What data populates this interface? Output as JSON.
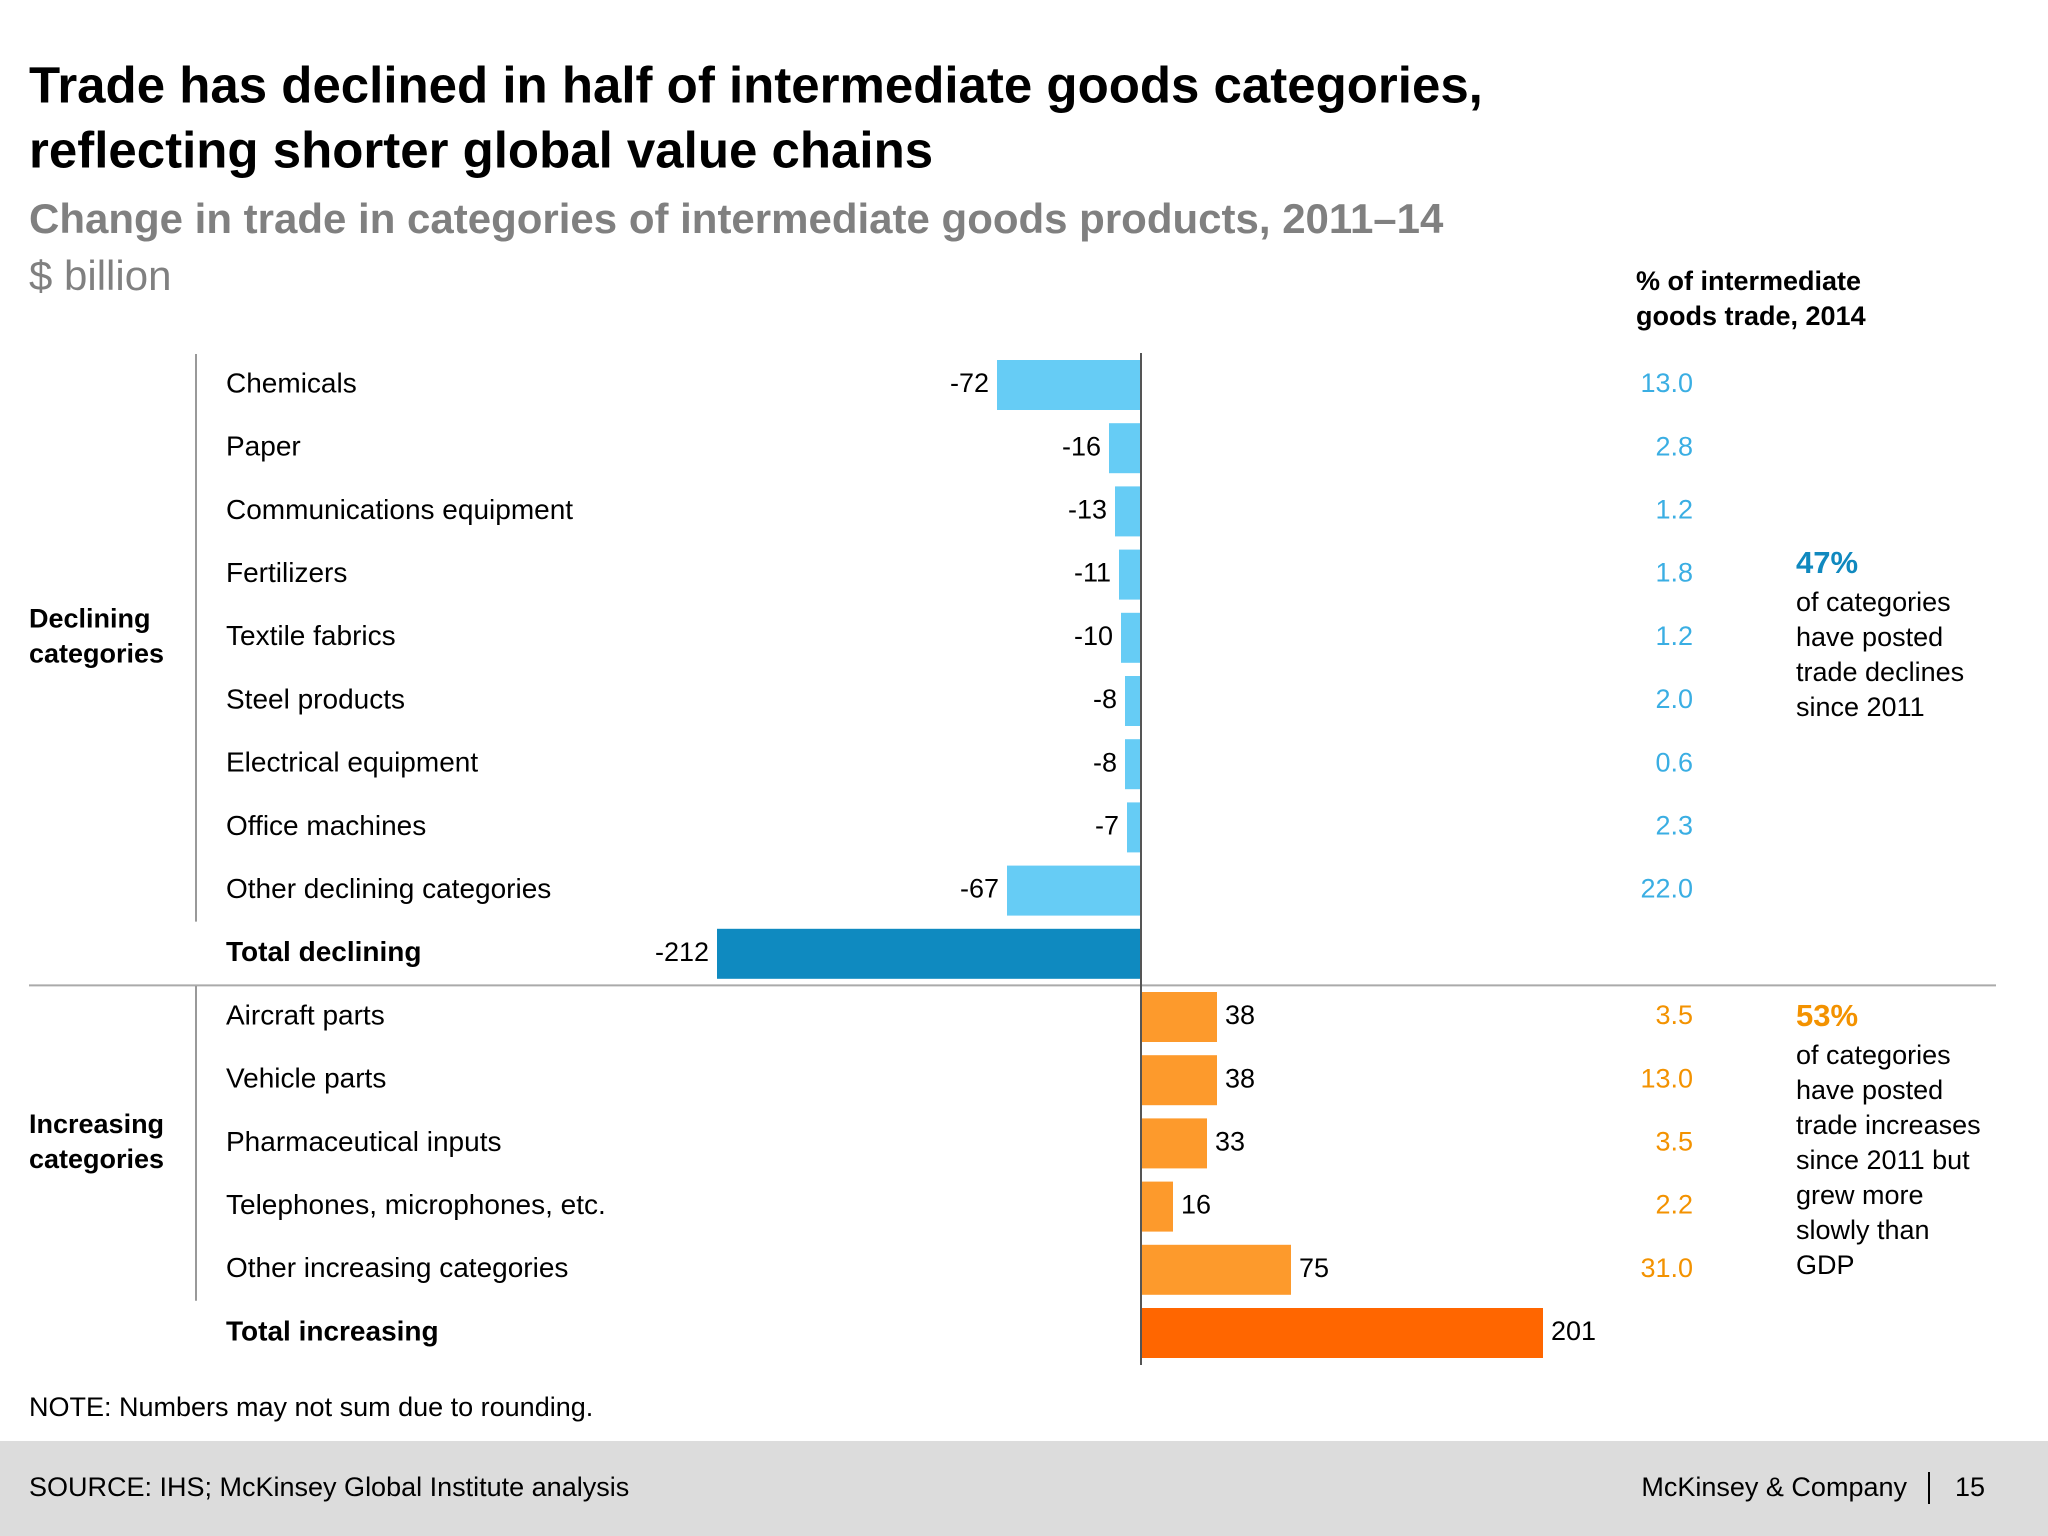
{
  "chart_data": {
    "type": "bar",
    "orientation": "horizontal",
    "title_lines": [
      "Trade has declined in half of intermediate goods categories,",
      "reflecting shorter global value chains"
    ],
    "subtitle": "Change in trade in categories of intermediate goods products, 2011–14",
    "unit": "$ billion",
    "share_header_lines": [
      "% of intermediate",
      "goods trade, 2014"
    ],
    "groups": [
      {
        "label_lines": [
          "Declining",
          "categories"
        ],
        "categories": [
          "Chemicals",
          "Paper",
          "Communications equipment",
          "Fertilizers",
          "Textile fabrics",
          "Steel products",
          "Electrical equipment",
          "Office machines",
          "Other declining categories",
          "Total declining"
        ],
        "values": [
          -72,
          -16,
          -13,
          -11,
          -10,
          -8,
          -8,
          -7,
          -67,
          -212
        ],
        "emphasis": [
          false,
          false,
          false,
          false,
          false,
          false,
          false,
          false,
          false,
          true
        ],
        "colors": [
          "#66ccf5",
          "#66ccf5",
          "#66ccf5",
          "#66ccf5",
          "#66ccf5",
          "#66ccf5",
          "#66ccf5",
          "#66ccf5",
          "#66ccf5",
          "#0f8ac0"
        ],
        "share_values": [
          13.0,
          2.8,
          1.2,
          1.8,
          1.2,
          2.0,
          0.6,
          2.3,
          22.0,
          null
        ],
        "share_labels": [
          "13.0",
          "2.8",
          "1.2",
          "1.8",
          "1.2",
          "2.0",
          "0.6",
          "2.3",
          "22.0",
          null
        ],
        "share_color": "#3aaee3",
        "note_lead": "47%",
        "note_lines": [
          "of categories",
          "have posted",
          "trade declines",
          "since 2011"
        ],
        "note_color": "#1089bf"
      },
      {
        "label_lines": [
          "Increasing",
          "categories"
        ],
        "categories": [
          "Aircraft parts",
          "Vehicle parts",
          "Pharmaceutical inputs",
          "Telephones, microphones, etc.",
          "Other increasing categories",
          "Total increasing"
        ],
        "values": [
          38,
          38,
          33,
          16,
          75,
          201
        ],
        "emphasis": [
          false,
          false,
          false,
          false,
          false,
          true
        ],
        "colors": [
          "#fd9a2c",
          "#fd9a2c",
          "#fd9a2c",
          "#fd9a2c",
          "#fd9a2c",
          "#ff6600"
        ],
        "share_values": [
          3.5,
          13.0,
          3.5,
          2.2,
          31.0,
          null
        ],
        "share_labels": [
          "3.5",
          "13.0",
          "3.5",
          "2.2",
          "31.0",
          null
        ],
        "share_color": "#f39200",
        "note_lead": "53%",
        "note_lines": [
          "of categories",
          "have posted",
          "trade increases",
          "since 2011 but",
          "grew more",
          "slowly than",
          "GDP"
        ],
        "note_color": "#f39200"
      }
    ],
    "note": "NOTE: Numbers may not sum due to rounding.",
    "source": "SOURCE: IHS; McKinsey Global Institute analysis",
    "brand": "McKinsey & Company",
    "page_number": "15"
  }
}
